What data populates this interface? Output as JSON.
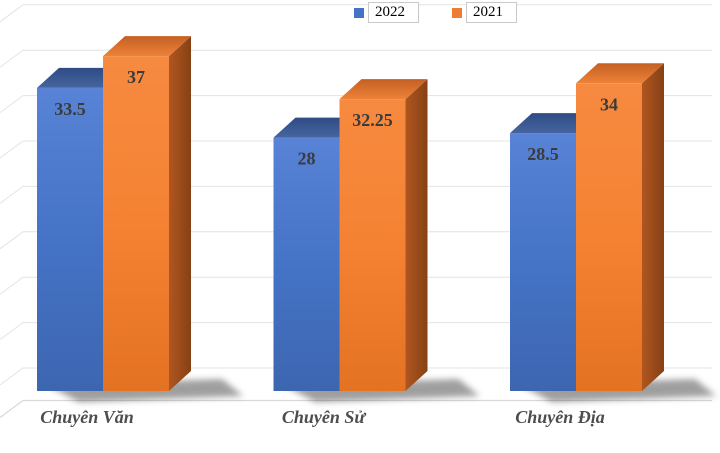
{
  "chart_data": {
    "type": "bar",
    "variant": "3d-clustered-column",
    "title": "",
    "xlabel": "",
    "ylabel": "",
    "categories": [
      "Chuyên Văn",
      "Chuyên Sử",
      "Chuyên Địa"
    ],
    "series": [
      {
        "name": "2022",
        "color": "#4472C4",
        "values": [
          33.5,
          28,
          28.5
        ]
      },
      {
        "name": "2021",
        "color": "#ED7D31",
        "values": [
          37,
          32.25,
          34
        ]
      }
    ],
    "data_labels": "inside-end",
    "ylim": [
      0,
      45
    ],
    "gridline_step": 5,
    "grid": true,
    "axis_tick_labels": "none",
    "legend_position": "top"
  },
  "legend": {
    "items": [
      {
        "label": "2022",
        "color": "#4472C4"
      },
      {
        "label": "2021",
        "color": "#ED7D31"
      }
    ]
  },
  "colors": {
    "background": "#FFFFFF",
    "gridline": "#E4E4E4",
    "floor_line": "#D9D9D9",
    "data_label": "#3B3B3B",
    "category_label": "#4D4D4D",
    "series_2022": "#4472C4",
    "series_2021": "#ED7D31"
  }
}
